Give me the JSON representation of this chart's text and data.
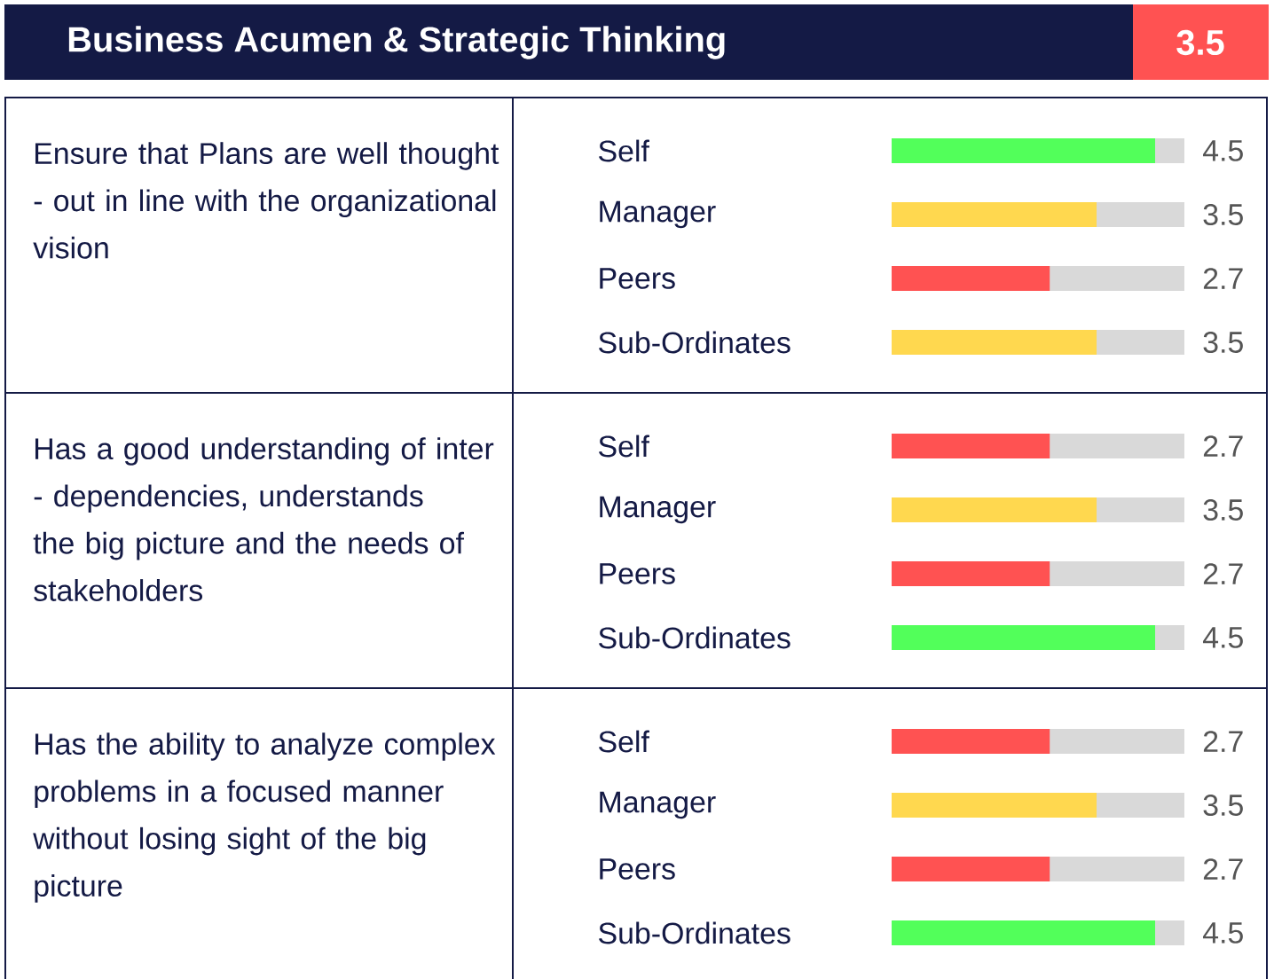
{
  "chart_data": [
    {
      "type": "other",
      "title": "Business Acumen & Strategic Thinking",
      "annotations": [
        "3.5"
      ]
    },
    {
      "type": "bar",
      "orientation": "horizontal",
      "title": "Ensure that Plans are well thought - out in line with the organizational vision",
      "categories": [
        "Self",
        "Manager",
        "Peers",
        "Sub-Ordinates"
      ],
      "values": [
        4.5,
        3.5,
        2.7,
        3.5
      ],
      "value_labels": [
        "4.5",
        "3.5",
        "2.7",
        "3.5"
      ],
      "colors": [
        "#52ff5a",
        "#ffd84f",
        "#ff5252",
        "#ffd84f"
      ],
      "xlim": [
        0,
        5
      ]
    },
    {
      "type": "bar",
      "orientation": "horizontal",
      "title": "Has a good understanding of inter - dependencies, understands the big picture and the needs of stakeholders",
      "categories": [
        "Self",
        "Manager",
        "Peers",
        "Sub-Ordinates"
      ],
      "values": [
        2.7,
        3.5,
        2.7,
        4.5
      ],
      "value_labels": [
        "2.7",
        "3.5",
        "2.7",
        "4.5"
      ],
      "colors": [
        "#ff5252",
        "#ffd84f",
        "#ff5252",
        "#52ff5a"
      ],
      "xlim": [
        0,
        5
      ]
    },
    {
      "type": "bar",
      "orientation": "horizontal",
      "title": "Has the ability to analyze complex problems in a focused manner without losing sight of the big picture",
      "categories": [
        "Self",
        "Manager",
        "Peers",
        "Sub-Ordinates"
      ],
      "values": [
        2.7,
        3.5,
        2.7,
        4.5
      ],
      "value_labels": [
        "2.7",
        "3.5",
        "2.7",
        "4.5"
      ],
      "colors": [
        "#ff5252",
        "#ffd84f",
        "#ff5252",
        "#52ff5a"
      ],
      "xlim": [
        0,
        5
      ]
    }
  ]
}
